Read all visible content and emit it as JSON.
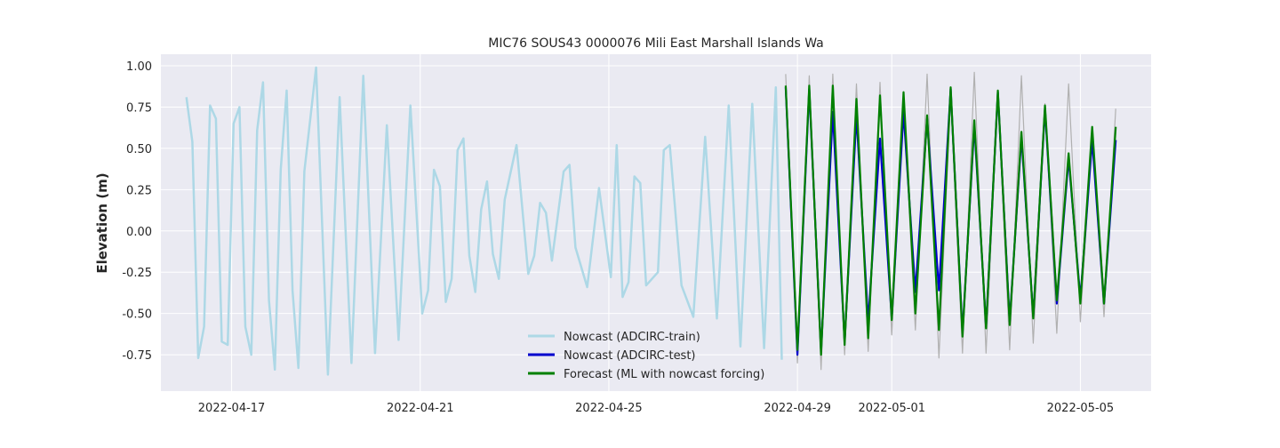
{
  "chart_data": {
    "type": "line",
    "title": "MIC76 SOUS43 0000076 Mili East Marshall Islands Wa",
    "xlabel": "",
    "ylabel": "Elevation (m)",
    "xlim": [
      "2022-04-15T12:00",
      "2022-05-06T12:00"
    ],
    "ylim": [
      -0.97,
      1.07
    ],
    "x_tick_labels": [
      "2022-04-17",
      "2022-04-21",
      "2022-04-25",
      "2022-04-29",
      "2022-05-01",
      "2022-05-05"
    ],
    "y_tick_labels": [
      "-0.75",
      "-0.50",
      "-0.25",
      "0.00",
      "0.25",
      "0.50",
      "0.75",
      "1.00"
    ],
    "y_ticks": [
      -0.75,
      -0.5,
      -0.25,
      0.0,
      0.25,
      0.5,
      0.75,
      1.0
    ],
    "grid": true,
    "legend_position": "lower-center",
    "colors": {
      "train": "#add8e6",
      "test": "#0000cd",
      "forecast": "#008000",
      "observed": "#b0b0b0",
      "plot_bg": "#eaeaf2",
      "grid": "#ffffff"
    },
    "series": [
      {
        "name": "Nowcast (ADCIRC-train)",
        "color": "#add8e6",
        "x": [
          "2022-04-16T01:00",
          "2022-04-16T04:00",
          "2022-04-16T07:00",
          "2022-04-16T10:00",
          "2022-04-16T13:00",
          "2022-04-16T16:00",
          "2022-04-16T19:00",
          "2022-04-16T22:00",
          "2022-04-17T01:00",
          "2022-04-17T04:00",
          "2022-04-17T07:00",
          "2022-04-17T10:00",
          "2022-04-17T13:00",
          "2022-04-17T16:00",
          "2022-04-17T19:00",
          "2022-04-17T22:00",
          "2022-04-18T01:00",
          "2022-04-18T04:00",
          "2022-04-18T07:00",
          "2022-04-18T10:00",
          "2022-04-18T13:00",
          "2022-04-18T19:00",
          "2022-04-19T01:00",
          "2022-04-19T07:00",
          "2022-04-19T13:00",
          "2022-04-19T19:00",
          "2022-04-20T01:00",
          "2022-04-20T07:00",
          "2022-04-20T13:00",
          "2022-04-20T19:00",
          "2022-04-21T01:00",
          "2022-04-21T04:00",
          "2022-04-21T07:00",
          "2022-04-21T10:00",
          "2022-04-21T13:00",
          "2022-04-21T16:00",
          "2022-04-21T19:00",
          "2022-04-21T22:00",
          "2022-04-22T01:00",
          "2022-04-22T04:00",
          "2022-04-22T07:00",
          "2022-04-22T10:00",
          "2022-04-22T13:00",
          "2022-04-22T16:00",
          "2022-04-22T19:00",
          "2022-04-23T01:00",
          "2022-04-23T07:00",
          "2022-04-23T10:00",
          "2022-04-23T13:00",
          "2022-04-23T16:00",
          "2022-04-23T19:00",
          "2022-04-24T01:00",
          "2022-04-24T04:00",
          "2022-04-24T07:00",
          "2022-04-24T13:00",
          "2022-04-24T19:00",
          "2022-04-25T01:00",
          "2022-04-25T04:00",
          "2022-04-25T07:00",
          "2022-04-25T10:00",
          "2022-04-25T13:00",
          "2022-04-25T16:00",
          "2022-04-25T19:00",
          "2022-04-26T01:00",
          "2022-04-26T04:00",
          "2022-04-26T07:00",
          "2022-04-26T13:00",
          "2022-04-26T19:00",
          "2022-04-27T01:00",
          "2022-04-27T07:00",
          "2022-04-27T13:00",
          "2022-04-27T19:00",
          "2022-04-28T01:00",
          "2022-04-28T07:00",
          "2022-04-28T13:00",
          "2022-04-28T16:00"
        ],
        "values": [
          0.81,
          0.54,
          -0.77,
          -0.58,
          0.76,
          0.68,
          -0.67,
          -0.69,
          0.65,
          0.75,
          -0.58,
          -0.75,
          0.61,
          0.9,
          -0.42,
          -0.84,
          0.37,
          0.85,
          -0.36,
          -0.83,
          0.36,
          0.99,
          -0.87,
          0.81,
          -0.8,
          0.94,
          -0.74,
          0.64,
          -0.66,
          0.76,
          -0.5,
          -0.36,
          0.37,
          0.27,
          -0.43,
          -0.29,
          0.49,
          0.56,
          -0.15,
          -0.37,
          0.13,
          0.3,
          -0.14,
          -0.29,
          0.19,
          0.52,
          -0.26,
          -0.15,
          0.17,
          0.11,
          -0.18,
          0.36,
          0.4,
          -0.1,
          -0.34,
          0.26,
          -0.28,
          0.52,
          -0.4,
          -0.31,
          0.33,
          0.29,
          -0.33,
          -0.25,
          0.49,
          0.52,
          -0.33,
          -0.52,
          0.57,
          -0.53,
          0.76,
          -0.7,
          0.77,
          -0.71,
          0.87,
          -0.78
        ]
      },
      {
        "name": "Nowcast (ADCIRC-test)",
        "color": "#0000cd",
        "x": [
          "2022-04-28T18:00",
          "2022-04-29T00:00",
          "2022-04-29T06:00",
          "2022-04-29T12:00",
          "2022-04-29T18:00",
          "2022-04-30T00:00",
          "2022-04-30T06:00",
          "2022-04-30T12:00",
          "2022-04-30T18:00",
          "2022-05-01T00:00",
          "2022-05-01T06:00",
          "2022-05-01T12:00",
          "2022-05-01T18:00",
          "2022-05-02T00:00",
          "2022-05-02T06:00",
          "2022-05-02T12:00",
          "2022-05-02T18:00",
          "2022-05-03T00:00",
          "2022-05-03T06:00",
          "2022-05-03T12:00",
          "2022-05-03T18:00",
          "2022-05-04T00:00",
          "2022-05-04T06:00",
          "2022-05-04T12:00",
          "2022-05-04T18:00",
          "2022-05-05T00:00",
          "2022-05-05T06:00",
          "2022-05-05T12:00",
          "2022-05-05T18:00"
        ],
        "values": [
          0.87,
          -0.75,
          0.86,
          -0.73,
          0.72,
          -0.67,
          0.7,
          -0.55,
          0.56,
          -0.53,
          0.72,
          -0.37,
          0.68,
          -0.36,
          0.86,
          -0.62,
          0.64,
          -0.58,
          0.84,
          -0.55,
          0.57,
          -0.52,
          0.74,
          -0.44,
          0.44,
          -0.41,
          0.55,
          -0.44,
          0.55
        ]
      },
      {
        "name": "Forecast (ML with nowcast forcing)",
        "color": "#008000",
        "x": [
          "2022-04-28T18:00",
          "2022-04-29T00:00",
          "2022-04-29T06:00",
          "2022-04-29T12:00",
          "2022-04-29T18:00",
          "2022-04-30T00:00",
          "2022-04-30T06:00",
          "2022-04-30T12:00",
          "2022-04-30T18:00",
          "2022-05-01T00:00",
          "2022-05-01T06:00",
          "2022-05-01T12:00",
          "2022-05-01T18:00",
          "2022-05-02T00:00",
          "2022-05-02T06:00",
          "2022-05-02T12:00",
          "2022-05-02T18:00",
          "2022-05-03T00:00",
          "2022-05-03T06:00",
          "2022-05-03T12:00",
          "2022-05-03T18:00",
          "2022-05-04T00:00",
          "2022-05-04T06:00",
          "2022-05-04T12:00",
          "2022-05-04T18:00",
          "2022-05-05T00:00",
          "2022-05-05T06:00",
          "2022-05-05T12:00",
          "2022-05-05T18:00"
        ],
        "values": [
          0.88,
          -0.72,
          0.88,
          -0.75,
          0.88,
          -0.69,
          0.8,
          -0.65,
          0.82,
          -0.54,
          0.84,
          -0.5,
          0.7,
          -0.6,
          0.87,
          -0.64,
          0.67,
          -0.59,
          0.85,
          -0.57,
          0.6,
          -0.53,
          0.76,
          -0.42,
          0.47,
          -0.44,
          0.63,
          -0.44,
          0.63
        ]
      },
      {
        "name": "",
        "color": "#b0b0b0",
        "x": [
          "2022-04-28T18:00",
          "2022-04-29T00:00",
          "2022-04-29T06:00",
          "2022-04-29T12:00",
          "2022-04-29T18:00",
          "2022-04-30T00:00",
          "2022-04-30T06:00",
          "2022-04-30T12:00",
          "2022-04-30T18:00",
          "2022-05-01T00:00",
          "2022-05-01T06:00",
          "2022-05-01T12:00",
          "2022-05-01T18:00",
          "2022-05-02T00:00",
          "2022-05-02T06:00",
          "2022-05-02T12:00",
          "2022-05-02T18:00",
          "2022-05-03T00:00",
          "2022-05-03T06:00",
          "2022-05-03T12:00",
          "2022-05-03T18:00",
          "2022-05-04T00:00",
          "2022-05-04T06:00",
          "2022-05-04T12:00",
          "2022-05-04T18:00",
          "2022-05-05T00:00",
          "2022-05-05T06:00",
          "2022-05-05T12:00",
          "2022-05-05T18:00"
        ],
        "values": [
          0.95,
          -0.8,
          0.94,
          -0.84,
          0.95,
          -0.75,
          0.89,
          -0.73,
          0.9,
          -0.63,
          0.78,
          -0.6,
          0.95,
          -0.77,
          0.81,
          -0.74,
          0.96,
          -0.74,
          0.83,
          -0.72,
          0.94,
          -0.68,
          0.77,
          -0.62,
          0.89,
          -0.55,
          0.6,
          -0.52,
          0.74
        ]
      }
    ]
  }
}
